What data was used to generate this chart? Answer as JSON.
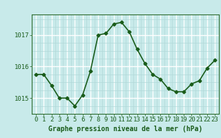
{
  "x": [
    0,
    1,
    2,
    3,
    4,
    5,
    6,
    7,
    8,
    9,
    10,
    11,
    12,
    13,
    14,
    15,
    16,
    17,
    18,
    19,
    20,
    21,
    22,
    23
  ],
  "y": [
    1015.75,
    1015.75,
    1015.4,
    1015.0,
    1015.0,
    1014.75,
    1015.1,
    1015.85,
    1017.0,
    1017.05,
    1017.35,
    1017.4,
    1017.1,
    1016.55,
    1016.1,
    1015.75,
    1015.6,
    1015.3,
    1015.2,
    1015.2,
    1015.45,
    1015.55,
    1015.95,
    1016.2
  ],
  "line_color": "#1a5c1a",
  "marker": "D",
  "marker_size": 2.5,
  "linewidth": 1.2,
  "background_color": "#c8eaea",
  "grid_major_color": "#ffffff",
  "grid_minor_color": "#b0d8d8",
  "ylabel_ticks": [
    1015,
    1016,
    1017
  ],
  "xlabel_ticks": [
    0,
    1,
    2,
    3,
    4,
    5,
    6,
    7,
    8,
    9,
    10,
    11,
    12,
    13,
    14,
    15,
    16,
    17,
    18,
    19,
    20,
    21,
    22,
    23
  ],
  "xlabel_labels": [
    "0",
    "1",
    "2",
    "3",
    "4",
    "5",
    "6",
    "7",
    "8",
    "9",
    "10",
    "11",
    "12",
    "13",
    "14",
    "15",
    "16",
    "17",
    "18",
    "19",
    "20",
    "21",
    "22",
    "23"
  ],
  "xlabel": "Graphe pression niveau de la mer (hPa)",
  "ylim": [
    1014.5,
    1017.65
  ],
  "xlim": [
    -0.5,
    23.5
  ],
  "tick_color": "#1a5c1a",
  "xlabel_fontsize": 7,
  "tick_fontsize": 6.5,
  "axis_color": "#2d6b2d"
}
